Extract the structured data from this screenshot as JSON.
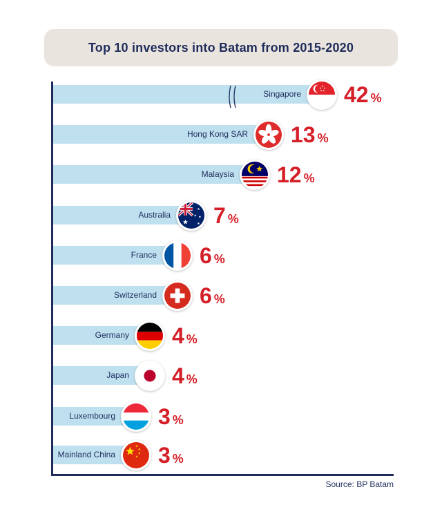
{
  "header": {
    "title": "Top 10 investors into Batam from 2015-2020"
  },
  "footer": {
    "source": "Source: BP Batam"
  },
  "chart_data": {
    "type": "bar",
    "orientation": "horizontal",
    "title": "Top 10 investors into Batam from 2015-2020",
    "unit": "%",
    "axis_break_on_first_bar": true,
    "categories": [
      "Singapore",
      "Hong Kong SAR",
      "Malaysia",
      "Australia",
      "France",
      "Switzerland",
      "Germany",
      "Japan",
      "Luxembourg",
      "Mainland China"
    ],
    "values": [
      42,
      13,
      12,
      7,
      6,
      6,
      4,
      4,
      3,
      3
    ],
    "flags": [
      "singapore-flag",
      "hong-kong-flag",
      "malaysia-flag",
      "australia-flag",
      "france-flag",
      "switzerland-flag",
      "germany-flag",
      "japan-flag",
      "luxembourg-flag",
      "china-flag"
    ],
    "colors": {
      "bar": "#bfe0ef",
      "value": "#d51f28",
      "text": "#1f2c5c",
      "title_bg": "#e9e4dd"
    }
  }
}
